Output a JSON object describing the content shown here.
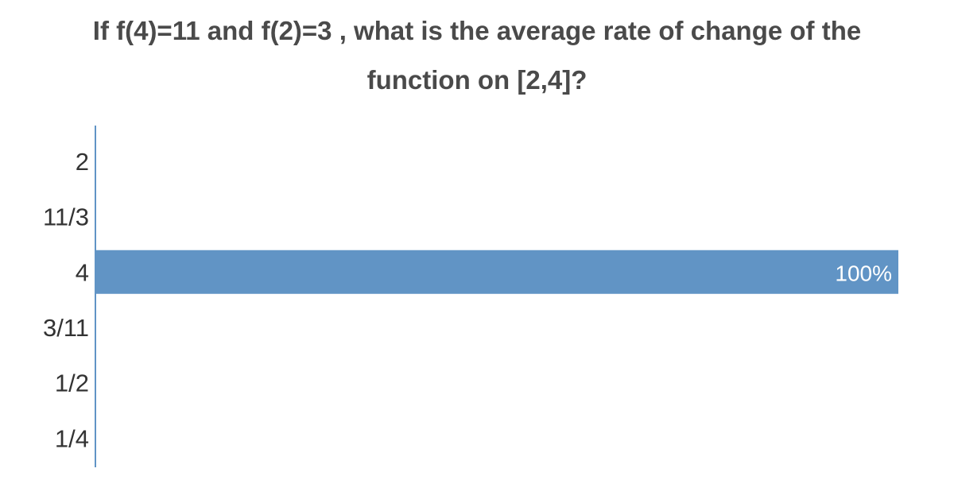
{
  "chart_data": {
    "type": "bar",
    "orientation": "horizontal",
    "title_lines": [
      "If f(4)=11 and f(2)=3 , what is the average rate of change of the",
      "function on [2,4]?"
    ],
    "categories": [
      "2",
      "11/3",
      "4",
      "3/11",
      "1/2",
      "1/4"
    ],
    "values": [
      0,
      0,
      100,
      0,
      0,
      0
    ],
    "data_labels": [
      "",
      "",
      "100%",
      "",
      "",
      ""
    ],
    "unit": "%",
    "xlim": [
      0,
      100
    ],
    "grid": false,
    "bar_color": "#6194c5",
    "axis_color": "#6194c5",
    "label_color": "#333333",
    "title_color": "#4a4a4a"
  }
}
